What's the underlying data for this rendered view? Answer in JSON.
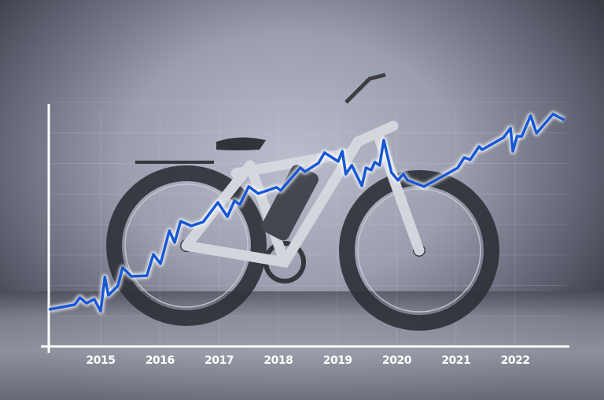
{
  "chart_data": {
    "type": "line",
    "title": "",
    "xlabel": "",
    "ylabel": "",
    "x_tick_labels": [
      "2015",
      "2016",
      "2017",
      "2018",
      "2019",
      "2020",
      "2021",
      "2022"
    ],
    "xlim": [
      2014.12,
      2022.92
    ],
    "ylim": [
      0,
      100
    ],
    "y_tick_labels": [],
    "grid": true,
    "legend": "none",
    "background": "photo of a grey fat-tire electric bike",
    "colors": {
      "line": "#1757d6",
      "glow": "#ffffff",
      "axis": "#ffffff"
    },
    "series": [
      {
        "x": [
          2014.14,
          2014.56,
          2014.65,
          2014.76,
          2014.89,
          2015.0,
          2015.07,
          2015.13,
          2015.29,
          2015.37,
          2015.52,
          2015.78,
          2015.89,
          2016.01,
          2016.16,
          2016.25,
          2016.35,
          2016.53,
          2016.73,
          2016.98,
          2017.14,
          2017.26,
          2017.35,
          2017.5,
          2017.66,
          2017.97,
          2018.04,
          2018.37,
          2018.45,
          2018.68,
          2018.78,
          2019.01,
          2019.08,
          2019.14,
          2019.24,
          2019.41,
          2019.48,
          2019.57,
          2019.63,
          2019.71,
          2019.78,
          2019.91,
          2020.02,
          2020.11,
          2020.18,
          2020.46,
          2020.7,
          2021.03,
          2021.14,
          2021.24,
          2021.39,
          2021.44,
          2021.8,
          2021.92,
          2021.96,
          2022.03,
          2022.11,
          2022.26,
          2022.36,
          2022.64,
          2022.82
        ],
        "y": [
          15.2,
          17.1,
          20.0,
          17.7,
          19.4,
          14.5,
          28.4,
          21.0,
          24.8,
          32.3,
          28.7,
          29.0,
          37.7,
          33.9,
          47.4,
          42.6,
          51.3,
          49.4,
          51.0,
          59.0,
          53.2,
          59.7,
          58.1,
          65.5,
          62.6,
          65.2,
          63.9,
          73.2,
          71.6,
          75.2,
          79.4,
          75.8,
          80.0,
          70.6,
          74.2,
          65.8,
          73.2,
          72.3,
          75.5,
          74.2,
          84.5,
          71.3,
          68.1,
          70.6,
          68.1,
          65.5,
          68.7,
          73.2,
          77.4,
          76.5,
          81.9,
          80.6,
          85.5,
          89.4,
          80.0,
          86.1,
          86.1,
          94.5,
          87.4,
          95.2,
          92.9
        ]
      }
    ]
  }
}
